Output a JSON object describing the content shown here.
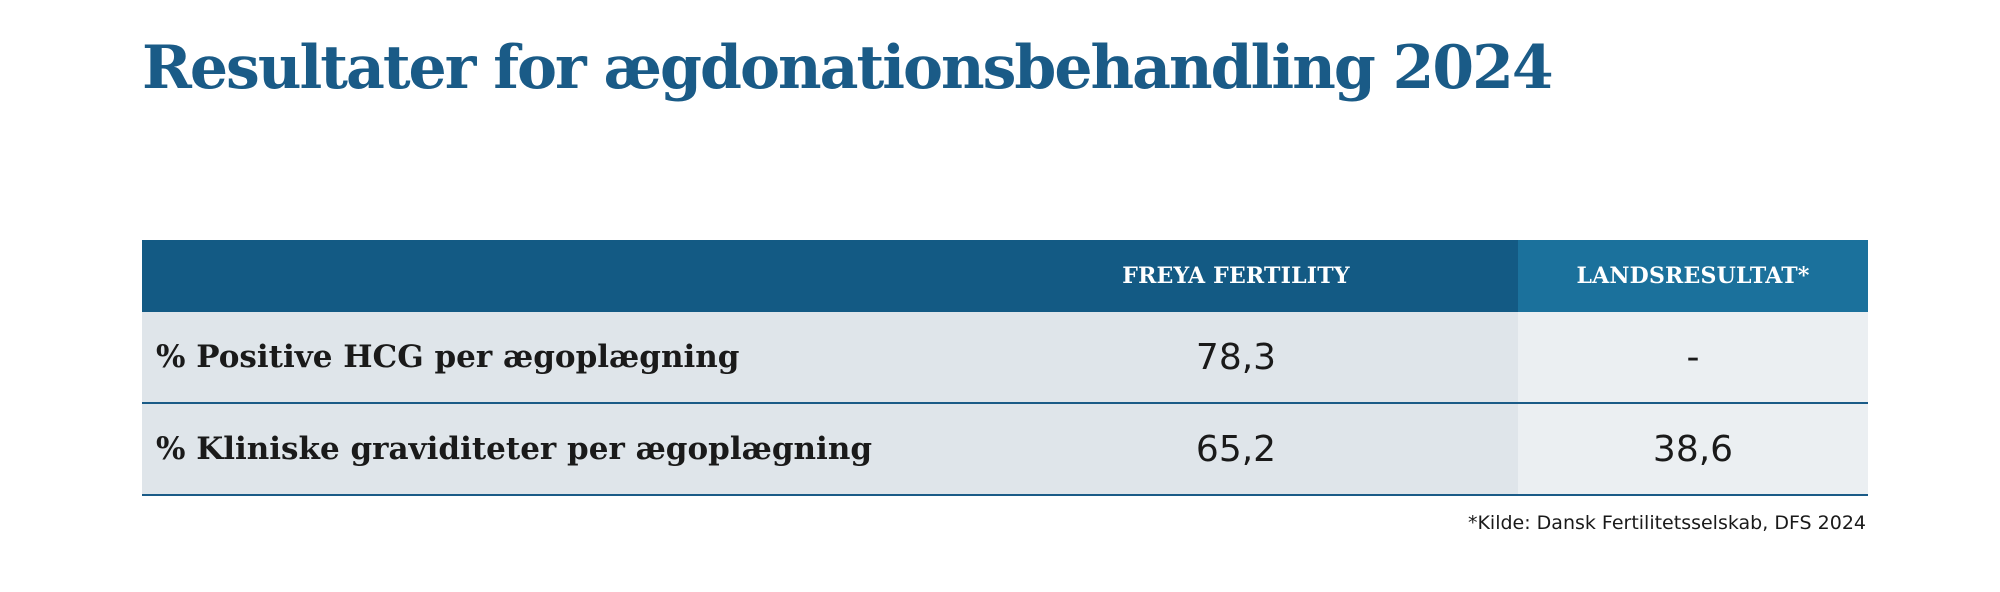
{
  "title": "Resultater for ægdonationsbehandling 2024",
  "table": {
    "headers": [
      "",
      "FREYA FERTILITY",
      "LANDSRESULTAT*"
    ],
    "rows": [
      {
        "label": "% Positive HCG per ægoplægning",
        "freya": "78,3",
        "national": "-"
      },
      {
        "label": "% Kliniske graviditeter per ægoplægning",
        "freya": "65,2",
        "national": "38,6"
      }
    ]
  },
  "footnote": "*Kilde: Dansk Fertilitetsselskab, DFS 2024",
  "colors": {
    "title": "#1a5b87",
    "header_primary": "#135a84",
    "header_secondary": "#1b719c",
    "row_bg": "#dfe5ea",
    "row_bg_light": "#ebeff2"
  }
}
